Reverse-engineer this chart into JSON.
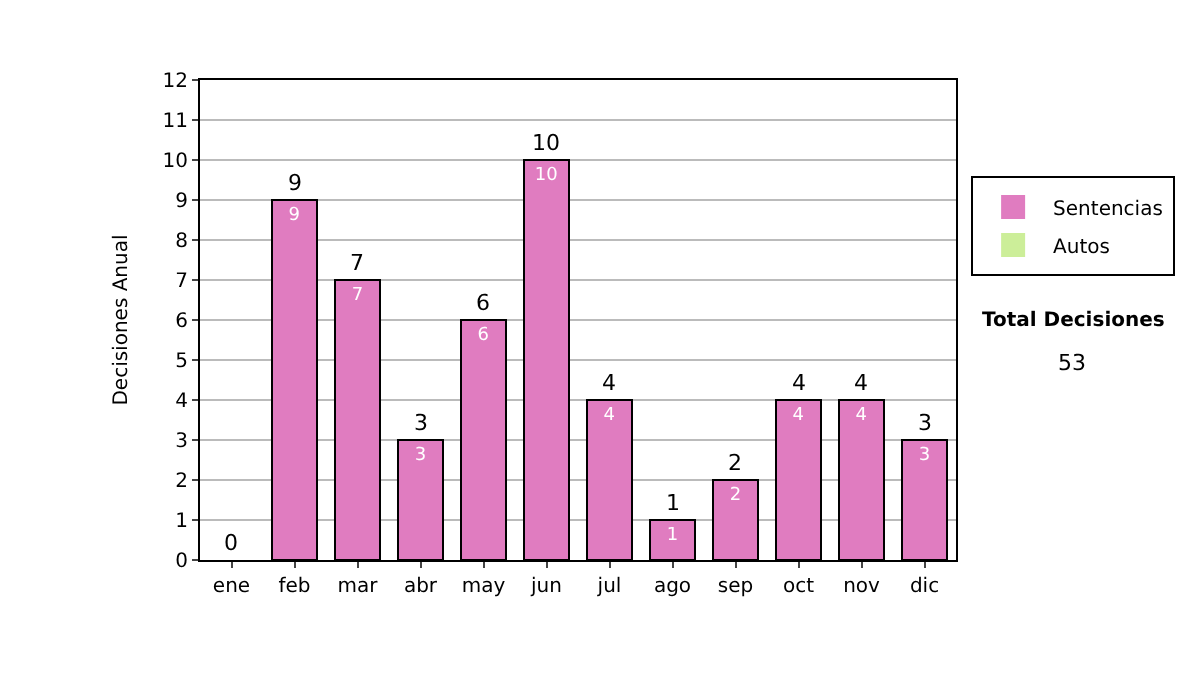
{
  "chart_data": {
    "type": "bar",
    "stacked": true,
    "ylabel": "Decisiones Anual",
    "categories": [
      "ene",
      "feb",
      "mar",
      "abr",
      "may",
      "jun",
      "jul",
      "ago",
      "sep",
      "oct",
      "nov",
      "dic"
    ],
    "series": [
      {
        "name": "Sentencias",
        "color": "#e07cc0",
        "values": [
          0,
          9,
          7,
          3,
          6,
          10,
          4,
          1,
          2,
          4,
          4,
          3
        ],
        "value_labels": [
          null,
          "9",
          "7",
          "3",
          "6",
          "10",
          "4",
          "1",
          "2",
          "4",
          "4",
          "3"
        ]
      },
      {
        "name": "Autos",
        "color": "#ccee99",
        "values": [
          0,
          0,
          0,
          0,
          0,
          0,
          0,
          0,
          0,
          0,
          0,
          0
        ]
      }
    ],
    "totals": [
      "0",
      "9",
      "7",
      "3",
      "6",
      "10",
      "4",
      "1",
      "2",
      "4",
      "4",
      "3"
    ],
    "ylim": [
      0,
      12
    ],
    "yticks": [
      0,
      1,
      2,
      3,
      4,
      5,
      6,
      7,
      8,
      9,
      10,
      11,
      12
    ],
    "grid": "y",
    "legend": "right",
    "annotations": [
      "Total Decisiones",
      "53"
    ]
  }
}
